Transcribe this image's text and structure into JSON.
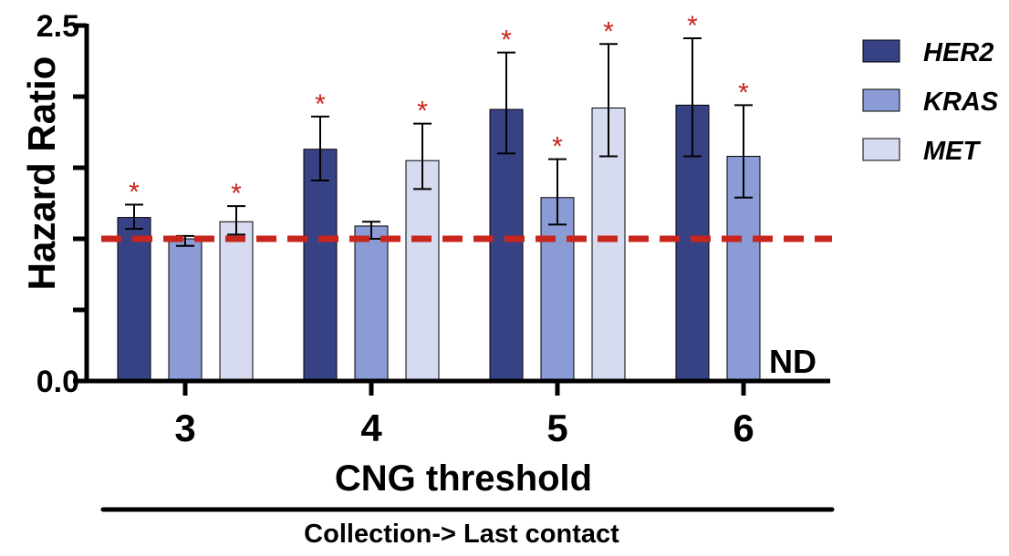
{
  "chart_data": {
    "type": "bar",
    "categories": [
      "3",
      "4",
      "5",
      "6"
    ],
    "series": [
      {
        "name": "HER2",
        "values": [
          1.15,
          1.63,
          1.91,
          1.94
        ],
        "err_low": [
          1.07,
          1.41,
          1.6,
          1.58
        ],
        "err_high": [
          1.24,
          1.86,
          2.31,
          2.41
        ],
        "significant": [
          true,
          true,
          true,
          true
        ]
      },
      {
        "name": "KRAS",
        "values": [
          1.0,
          1.09,
          1.29,
          1.58
        ],
        "err_low": [
          0.95,
          1.0,
          1.1,
          1.29
        ],
        "err_high": [
          1.02,
          1.12,
          1.56,
          1.94
        ],
        "significant": [
          false,
          false,
          true,
          true
        ]
      },
      {
        "name": "MET",
        "values": [
          1.12,
          1.55,
          1.92,
          null
        ],
        "err_low": [
          1.03,
          1.35,
          1.58,
          null
        ],
        "err_high": [
          1.23,
          1.81,
          2.37,
          null
        ],
        "significant": [
          true,
          true,
          true,
          false
        ]
      }
    ],
    "colors": {
      "HER2": "#374285",
      "KRAS": "#8a9bd5",
      "MET": "#d6dbef",
      "reference": "#c8251d",
      "star": "#c8251d"
    },
    "reference_line": 1.0,
    "ylim": [
      0,
      2.5
    ],
    "yticks": [
      0,
      0.5,
      1.0,
      1.5,
      2.0,
      2.5
    ],
    "ytick_labels": [
      "0.0",
      "",
      "",
      "",
      "",
      "2.5"
    ],
    "ylabel": "Hazard Ratio",
    "xlabel": "CNG threshold",
    "subtitle": "Collection-> Last contact",
    "nd_label": "ND",
    "star_symbol": "*",
    "legend_position": "right"
  }
}
